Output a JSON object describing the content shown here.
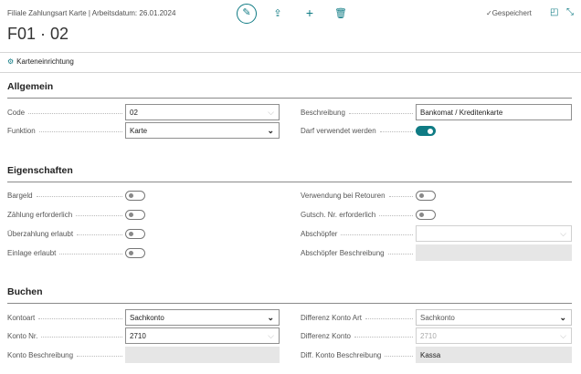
{
  "header": {
    "title": "Filiale Zahlungsart Karte | Arbeitsdatum: 26.01.2024",
    "page_title": "F01 · 02",
    "saved_status": "Gespeichert"
  },
  "actions": {
    "card_setup": "Karteneinrichtung"
  },
  "accent": "#0f7b84",
  "sections": {
    "general": {
      "title": "Allgemein",
      "code_label": "Code",
      "code": "02",
      "function_label": "Funktion",
      "function": "Karte",
      "description_label": "Beschreibung",
      "description": "Bankomat / Kreditenkarte",
      "usable_label": "Darf verwendet werden",
      "usable": true
    },
    "properties": {
      "title": "Eigenschaften",
      "cash_label": "Bargeld",
      "cash": false,
      "count_req_label": "Zählung erforderlich",
      "count_req": false,
      "overpay_label": "Überzahlung erlaubt",
      "overpay": false,
      "deposit_label": "Einlage erlaubt",
      "deposit": false,
      "returns_label": "Verwendung bei Retouren",
      "returns": false,
      "voucher_req_label": "Gutsch. Nr. erforderlich",
      "voucher_req": false,
      "skimmer_label": "Abschöpfer",
      "skimmer": "",
      "skimmer_desc_label": "Abschöpfer Beschreibung",
      "skimmer_desc": ""
    },
    "posting": {
      "title": "Buchen",
      "account_type_label": "Kontoart",
      "account_type": "Sachkonto",
      "account_no_label": "Konto Nr.",
      "account_no": "2710",
      "account_desc_label": "Konto Beschreibung",
      "account_desc": "",
      "diff_type_label": "Differenz Konto Art",
      "diff_type": "Sachkonto",
      "diff_account_label": "Differenz Konto",
      "diff_account": "2710",
      "diff_desc_label": "Diff. Konto Beschreibung",
      "diff_desc": "Kassa"
    }
  }
}
